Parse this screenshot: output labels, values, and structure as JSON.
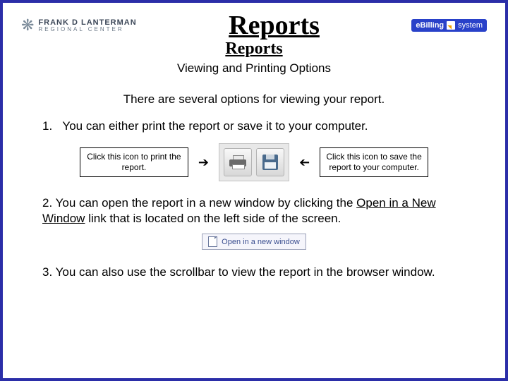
{
  "theme": {
    "frame_border": "#2b2ea8",
    "text": "#000000",
    "body_font": "Arial",
    "title_font": "Times New Roman"
  },
  "header": {
    "brand_line1": "FRANK D LANTERMAN",
    "brand_line2": "REGIONAL CENTER",
    "title": "Reports",
    "right_badge_a": "eBilling",
    "right_badge_b": "system"
  },
  "sub": {
    "title": "Reports",
    "subtitle": "Viewing and Printing Options"
  },
  "intro": "There are several options for viewing your report.",
  "step1": {
    "num": "1.",
    "text": "You can either print the report or save it to your computer."
  },
  "callouts": {
    "print": "Click this icon to print the report.",
    "save": "Click this icon to save the report to your computer."
  },
  "step2": {
    "num": "2.",
    "a": "You can open the report in a new window by clicking the ",
    "link": "Open in a New Window",
    "b": " link that is located on the left side of the screen."
  },
  "open_link_label": "Open in a new window",
  "step3": {
    "num": "3.",
    "text": "You can also use the scrollbar to view the report in the browser window."
  }
}
